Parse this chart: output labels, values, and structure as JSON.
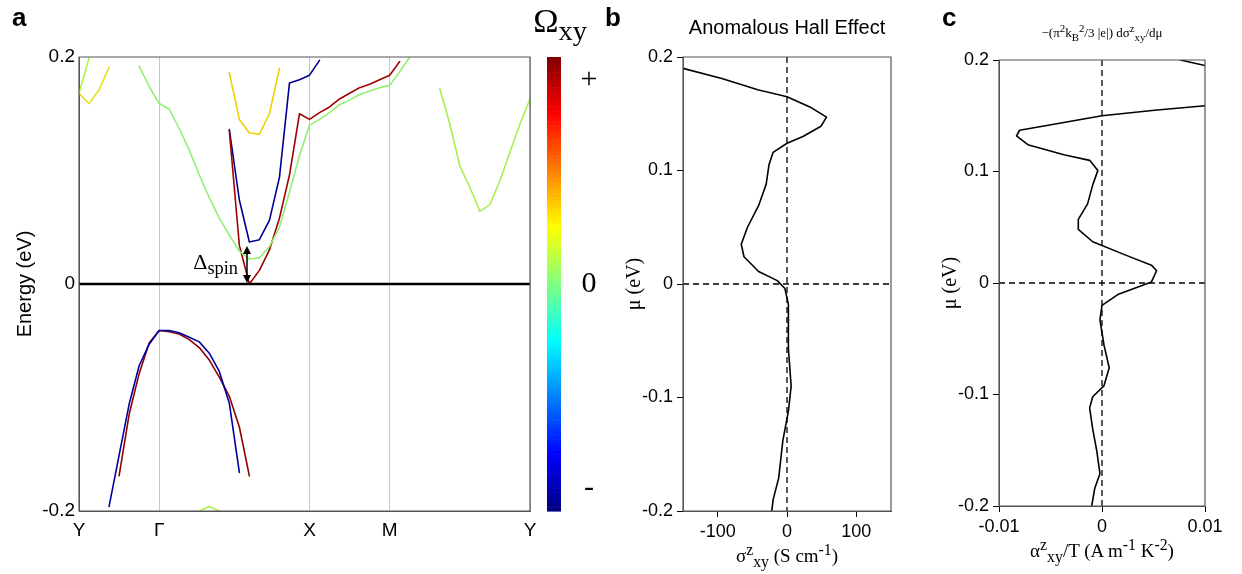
{
  "chart_data": [
    {
      "type": "line",
      "ylabel": "Energy (eV)",
      "clabel": "Ω$_{xy}$",
      "clim": [
        -1,
        1
      ],
      "cticks": [
        {
          "value": 0.9,
          "label": "+"
        },
        {
          "value": 0,
          "label": "0"
        },
        {
          "value": -0.9,
          "label": "-"
        }
      ],
      "categories": [
        "Y",
        null,
        null,
        null,
        null,
        null,
        null,
        null,
        "Γ",
        null,
        null,
        null,
        null,
        null,
        null,
        null,
        null,
        null,
        null,
        null,
        null,
        null,
        null,
        "X",
        null,
        null,
        null,
        null,
        null,
        null,
        null,
        "M",
        null,
        null,
        null,
        null,
        null,
        null,
        null,
        null,
        null,
        null,
        null,
        null,
        null,
        "Y"
      ],
      "ylim": [
        -0.2,
        0.2
      ],
      "yticks": [
        -0.2,
        0,
        0.2
      ],
      "grid": "x",
      "marker": "none",
      "line_style": "solid",
      "ref_lines": [
        {
          "axis": "y",
          "value": 0,
          "color": "#000000",
          "line_style": "solid"
        }
      ],
      "annotations": [
        "a",
        "Δ$_{spin}$"
      ],
      "series": [
        {
          "color": "#b4f040",
          "values": [
            0.168,
            0.199,
            null,
            null,
            null,
            null,
            null,
            null,
            null,
            null,
            null,
            null,
            null,
            null,
            null,
            null,
            null,
            null,
            null,
            null,
            null,
            null,
            null,
            null,
            null,
            null,
            null,
            null,
            null,
            null,
            null,
            null,
            null,
            null,
            null,
            null,
            null,
            null,
            null,
            null,
            null,
            null,
            null,
            null,
            null,
            null
          ]
        },
        {
          "color": "#e8e020",
          "values": [
            0.168,
            0.159,
            0.171,
            0.191,
            null,
            null,
            null,
            null,
            null,
            null,
            null,
            null,
            null,
            null,
            null,
            null,
            null,
            null,
            null,
            null,
            null,
            null,
            null,
            null,
            null,
            null,
            null,
            null,
            null,
            null,
            null,
            null,
            null,
            null,
            null,
            null,
            null,
            null,
            null,
            null,
            null,
            null,
            null,
            null,
            null,
            null
          ]
        },
        {
          "color": "#90f070",
          "values": [
            null,
            null,
            null,
            null,
            null,
            null,
            0.192,
            0.174,
            0.159,
            0.154,
            0.137,
            0.118,
            0.096,
            0.076,
            0.058,
            0.043,
            0.029,
            0.022,
            0.023,
            0.033,
            0.05,
            0.081,
            0.113,
            0.14,
            0.145,
            0.151,
            0.158,
            0.162,
            0.167,
            0.17,
            0.173,
            0.175,
            0.187,
            0.2,
            null,
            null,
            null,
            null,
            null,
            null,
            null,
            null,
            null,
            null,
            null,
            null
          ]
        },
        {
          "color": "#a00000",
          "values": [
            null,
            null,
            null,
            null,
            null,
            null,
            null,
            null,
            null,
            null,
            null,
            null,
            null,
            null,
            null,
            0.135,
            0.034,
            0,
            0.012,
            0.03,
            0.058,
            0.096,
            0.15,
            0.145,
            0.151,
            0.156,
            0.163,
            0.168,
            0.173,
            0.176,
            0.18,
            0.184,
            0.196,
            null,
            null,
            null,
            null,
            null,
            null,
            null,
            null,
            null,
            null,
            null,
            null,
            null
          ]
        },
        {
          "color": "#000090",
          "values": [
            null,
            null,
            null,
            null,
            null,
            null,
            null,
            null,
            null,
            null,
            null,
            null,
            null,
            null,
            null,
            0.136,
            0.074,
            0.037,
            0.039,
            0.056,
            0.094,
            0.177,
            0.18,
            0.184,
            0.197,
            null,
            null,
            null,
            null,
            null,
            null,
            null,
            null,
            null,
            null,
            null,
            null,
            null,
            null,
            null,
            null,
            null,
            null,
            null,
            null,
            null
          ]
        },
        {
          "color": "#f0d000",
          "values": [
            null,
            null,
            null,
            null,
            null,
            null,
            null,
            null,
            null,
            null,
            null,
            null,
            null,
            null,
            null,
            0.186,
            0.145,
            0.133,
            0.132,
            0.15,
            0.19,
            null,
            null,
            null,
            null,
            null,
            null,
            null,
            null,
            null,
            null,
            null,
            null,
            null,
            null,
            null,
            null,
            null,
            null,
            null,
            null,
            null,
            null,
            null,
            null,
            null
          ]
        },
        {
          "color": "#a8f050",
          "values": [
            null,
            null,
            null,
            null,
            null,
            null,
            null,
            null,
            null,
            null,
            null,
            null,
            null,
            null,
            null,
            null,
            null,
            null,
            null,
            null,
            null,
            null,
            null,
            null,
            null,
            null,
            null,
            null,
            null,
            null,
            null,
            null,
            null,
            null,
            null,
            null,
            0.172,
            0.141,
            0.104,
            0.085,
            0.064,
            0.07,
            0.091,
            0.116,
            0.141,
            0.163
          ]
        },
        {
          "color": "#0000a0",
          "values": [
            null,
            null,
            null,
            -0.196,
            -0.151,
            -0.106,
            -0.072,
            -0.053,
            -0.041,
            -0.041,
            -0.043,
            -0.047,
            -0.051,
            -0.061,
            -0.077,
            -0.105,
            -0.166,
            null,
            null,
            null,
            null,
            null,
            null,
            null,
            null,
            null,
            null,
            null,
            null,
            null,
            null,
            null,
            null,
            null,
            null,
            null,
            null,
            null,
            null,
            null,
            null,
            null,
            null,
            null,
            null,
            null
          ]
        },
        {
          "color": "#900000",
          "values": [
            null,
            null,
            null,
            null,
            -0.169,
            -0.115,
            -0.079,
            -0.052,
            -0.041,
            -0.042,
            -0.044,
            -0.049,
            -0.056,
            -0.067,
            -0.082,
            -0.099,
            -0.126,
            -0.169,
            null,
            null,
            null,
            null,
            null,
            null,
            null,
            null,
            null,
            null,
            null,
            null,
            null,
            null,
            null,
            null,
            null,
            null,
            null,
            null,
            null,
            null,
            null,
            null,
            null,
            null,
            null,
            null
          ]
        },
        {
          "color": "#b0f050",
          "values": [
            null,
            null,
            null,
            null,
            null,
            null,
            null,
            null,
            null,
            null,
            null,
            null,
            -0.2,
            -0.196,
            -0.2,
            null,
            null,
            null,
            null,
            null,
            null,
            null,
            null,
            null,
            null,
            null,
            null,
            null,
            null,
            null,
            null,
            null,
            null,
            null,
            null,
            null,
            null,
            null,
            null,
            null,
            null,
            null,
            null,
            null,
            null,
            null
          ]
        }
      ]
    },
    {
      "type": "line",
      "title": "Anomalous Hall Effect",
      "xlabel": "σ$^{z}$$_{xy}$ (S cm$^{-1}$)",
      "ylabel": "μ (eV)",
      "xlim": [
        -150,
        150
      ],
      "xticks": [
        -100,
        0,
        100
      ],
      "ylim": [
        -0.2,
        0.2
      ],
      "yticks": [
        -0.2,
        -0.1,
        0,
        0.1,
        0.2
      ],
      "marker": "none",
      "line_style": "solid",
      "ref_lines": [
        {
          "axis": "x",
          "value": 0,
          "color": "#000000",
          "line_style": "dashed"
        },
        {
          "axis": "y",
          "value": 0,
          "color": "#000000",
          "line_style": "dashed"
        }
      ],
      "annotations": [
        "b"
      ],
      "series": [
        {
          "color": "#000000",
          "x": [
            -150,
            -94,
            -41,
            0,
            33,
            57,
            49,
            23,
            0,
            -20,
            -26,
            -30,
            -41,
            -57,
            -66,
            -62,
            -41,
            -14,
            -3,
            2,
            2,
            6,
            2,
            -6,
            -12,
            -20,
            -22
          ],
          "values": [
            0.19,
            0.181,
            0.171,
            0.165,
            0.156,
            0.147,
            0.139,
            0.13,
            0.124,
            0.116,
            0.105,
            0.088,
            0.069,
            0.05,
            0.035,
            0.024,
            0.011,
            0.003,
            -0.004,
            -0.018,
            -0.057,
            -0.09,
            -0.112,
            -0.138,
            -0.171,
            -0.19,
            -0.2
          ]
        }
      ]
    },
    {
      "type": "line",
      "title": "−(π$^{2}$k$_{B}$$^{2}$/3 |e|) dσ$^{z}$$_{xy}$/dμ",
      "xlabel": "α$^{z}$$_{xy}$/T (A m$^{-1}$ K$^{-2}$)",
      "ylabel": "μ (eV)",
      "xlim": [
        -0.01,
        0.01
      ],
      "xticks": [
        -0.01,
        0,
        0.01
      ],
      "ylim": [
        -0.2,
        0.2
      ],
      "yticks": [
        -0.2,
        -0.1,
        0,
        0.1,
        0.2
      ],
      "marker": "none",
      "line_style": "solid",
      "ref_lines": [
        {
          "axis": "x",
          "value": 0,
          "color": "#000000",
          "line_style": "dashed"
        },
        {
          "axis": "y",
          "value": 0,
          "color": "#000000",
          "line_style": "dashed"
        }
      ],
      "annotations": [
        "c"
      ],
      "series": [
        {
          "color": "#000000",
          "x": [
            0.0076,
            0.01
          ],
          "values": [
            0.2,
            0.195
          ]
        },
        {
          "color": "#000000",
          "x": [
            0.01,
            0.0051,
            0,
            -0.0055,
            -0.008,
            -0.0083,
            -0.0072,
            -0.0037,
            -0.0012,
            -0.0004,
            -0.0009,
            -0.0014,
            -0.0023,
            -0.0023,
            -0.0009,
            0.0023,
            0.0048,
            0.0053,
            0.0048,
            0.0016,
            0,
            -0.0002,
            0.0002,
            0.0007,
            0.0002,
            -0.0009,
            -0.0012,
            -0.0009,
            -0.0005,
            -0.0002,
            -0.0007,
            -0.001
          ],
          "values": [
            0.159,
            0.155,
            0.15,
            0.141,
            0.137,
            0.132,
            0.124,
            0.115,
            0.11,
            0.101,
            0.088,
            0.071,
            0.057,
            0.048,
            0.037,
            0.025,
            0.016,
            0.011,
            0.001,
            -0.01,
            -0.02,
            -0.033,
            -0.056,
            -0.076,
            -0.092,
            -0.102,
            -0.112,
            -0.131,
            -0.151,
            -0.171,
            -0.184,
            -0.2
          ]
        }
      ]
    }
  ]
}
